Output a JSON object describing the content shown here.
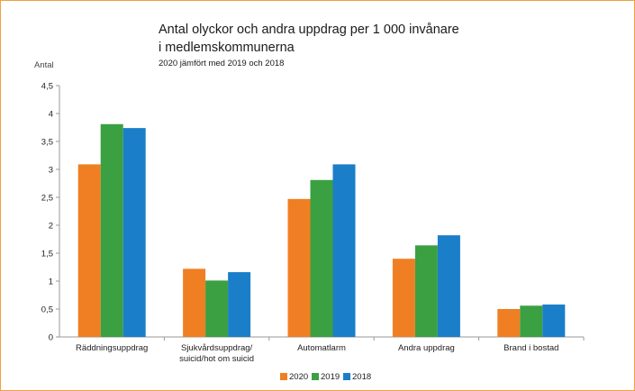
{
  "chart_data": {
    "type": "bar",
    "title_lines": [
      "Antal olyckor och andra uppdrag per 1 000 invånare",
      "i medlemskommunerna"
    ],
    "subtitle": "2020 jämfört med 2019 och 2018",
    "ylabel": "Antal",
    "xlabel": "",
    "ylim": [
      0,
      4.5
    ],
    "y_ticks": [
      "0",
      "0,5",
      "1",
      "1,5",
      "2",
      "2,5",
      "3",
      "3,5",
      "4",
      "4,5"
    ],
    "categories": [
      [
        "Räddningsuppdrag"
      ],
      [
        "Sjukvårdsuppdrag/",
        "suicid/hot om suicid"
      ],
      [
        "Automatlarm"
      ],
      [
        "Andra uppdrag"
      ],
      [
        "Brand i bostad"
      ]
    ],
    "series": [
      {
        "name": "2020",
        "color": "#f07f23",
        "values": [
          3.09,
          1.22,
          2.47,
          1.4,
          0.5
        ]
      },
      {
        "name": "2019",
        "color": "#3ba042",
        "values": [
          3.81,
          1.01,
          2.81,
          1.64,
          0.56
        ]
      },
      {
        "name": "2018",
        "color": "#1a7fc8",
        "values": [
          3.74,
          1.16,
          3.09,
          1.82,
          0.58
        ]
      }
    ],
    "grid": false,
    "legend_position": "bottom"
  }
}
